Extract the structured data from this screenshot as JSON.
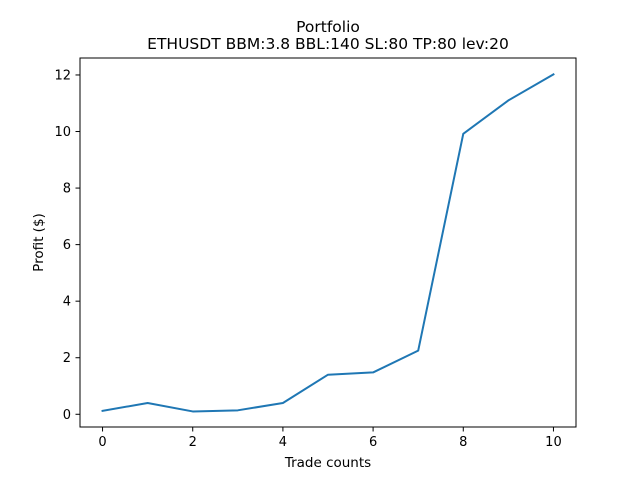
{
  "chart_data": {
    "type": "line",
    "title": "Portfolio",
    "subtitle": "ETHUSDT BBM:3.8 BBL:140 SL:80 TP:80 lev:20",
    "xlabel": "Trade counts",
    "ylabel": "Profit ($)",
    "xlim": [
      -0.5,
      10.5
    ],
    "ylim": [
      -0.45,
      12.6
    ],
    "xticks": [
      0,
      2,
      4,
      6,
      8,
      10
    ],
    "yticks": [
      0,
      2,
      4,
      6,
      8,
      10,
      12
    ],
    "grid": false,
    "series": [
      {
        "color": "#1f77b4",
        "x": [
          0,
          1,
          2,
          3,
          4,
          5,
          6,
          7,
          8,
          9,
          10
        ],
        "y": [
          0.12,
          0.4,
          0.1,
          0.14,
          0.4,
          1.4,
          1.48,
          2.25,
          9.92,
          11.1,
          12.02
        ]
      }
    ]
  }
}
